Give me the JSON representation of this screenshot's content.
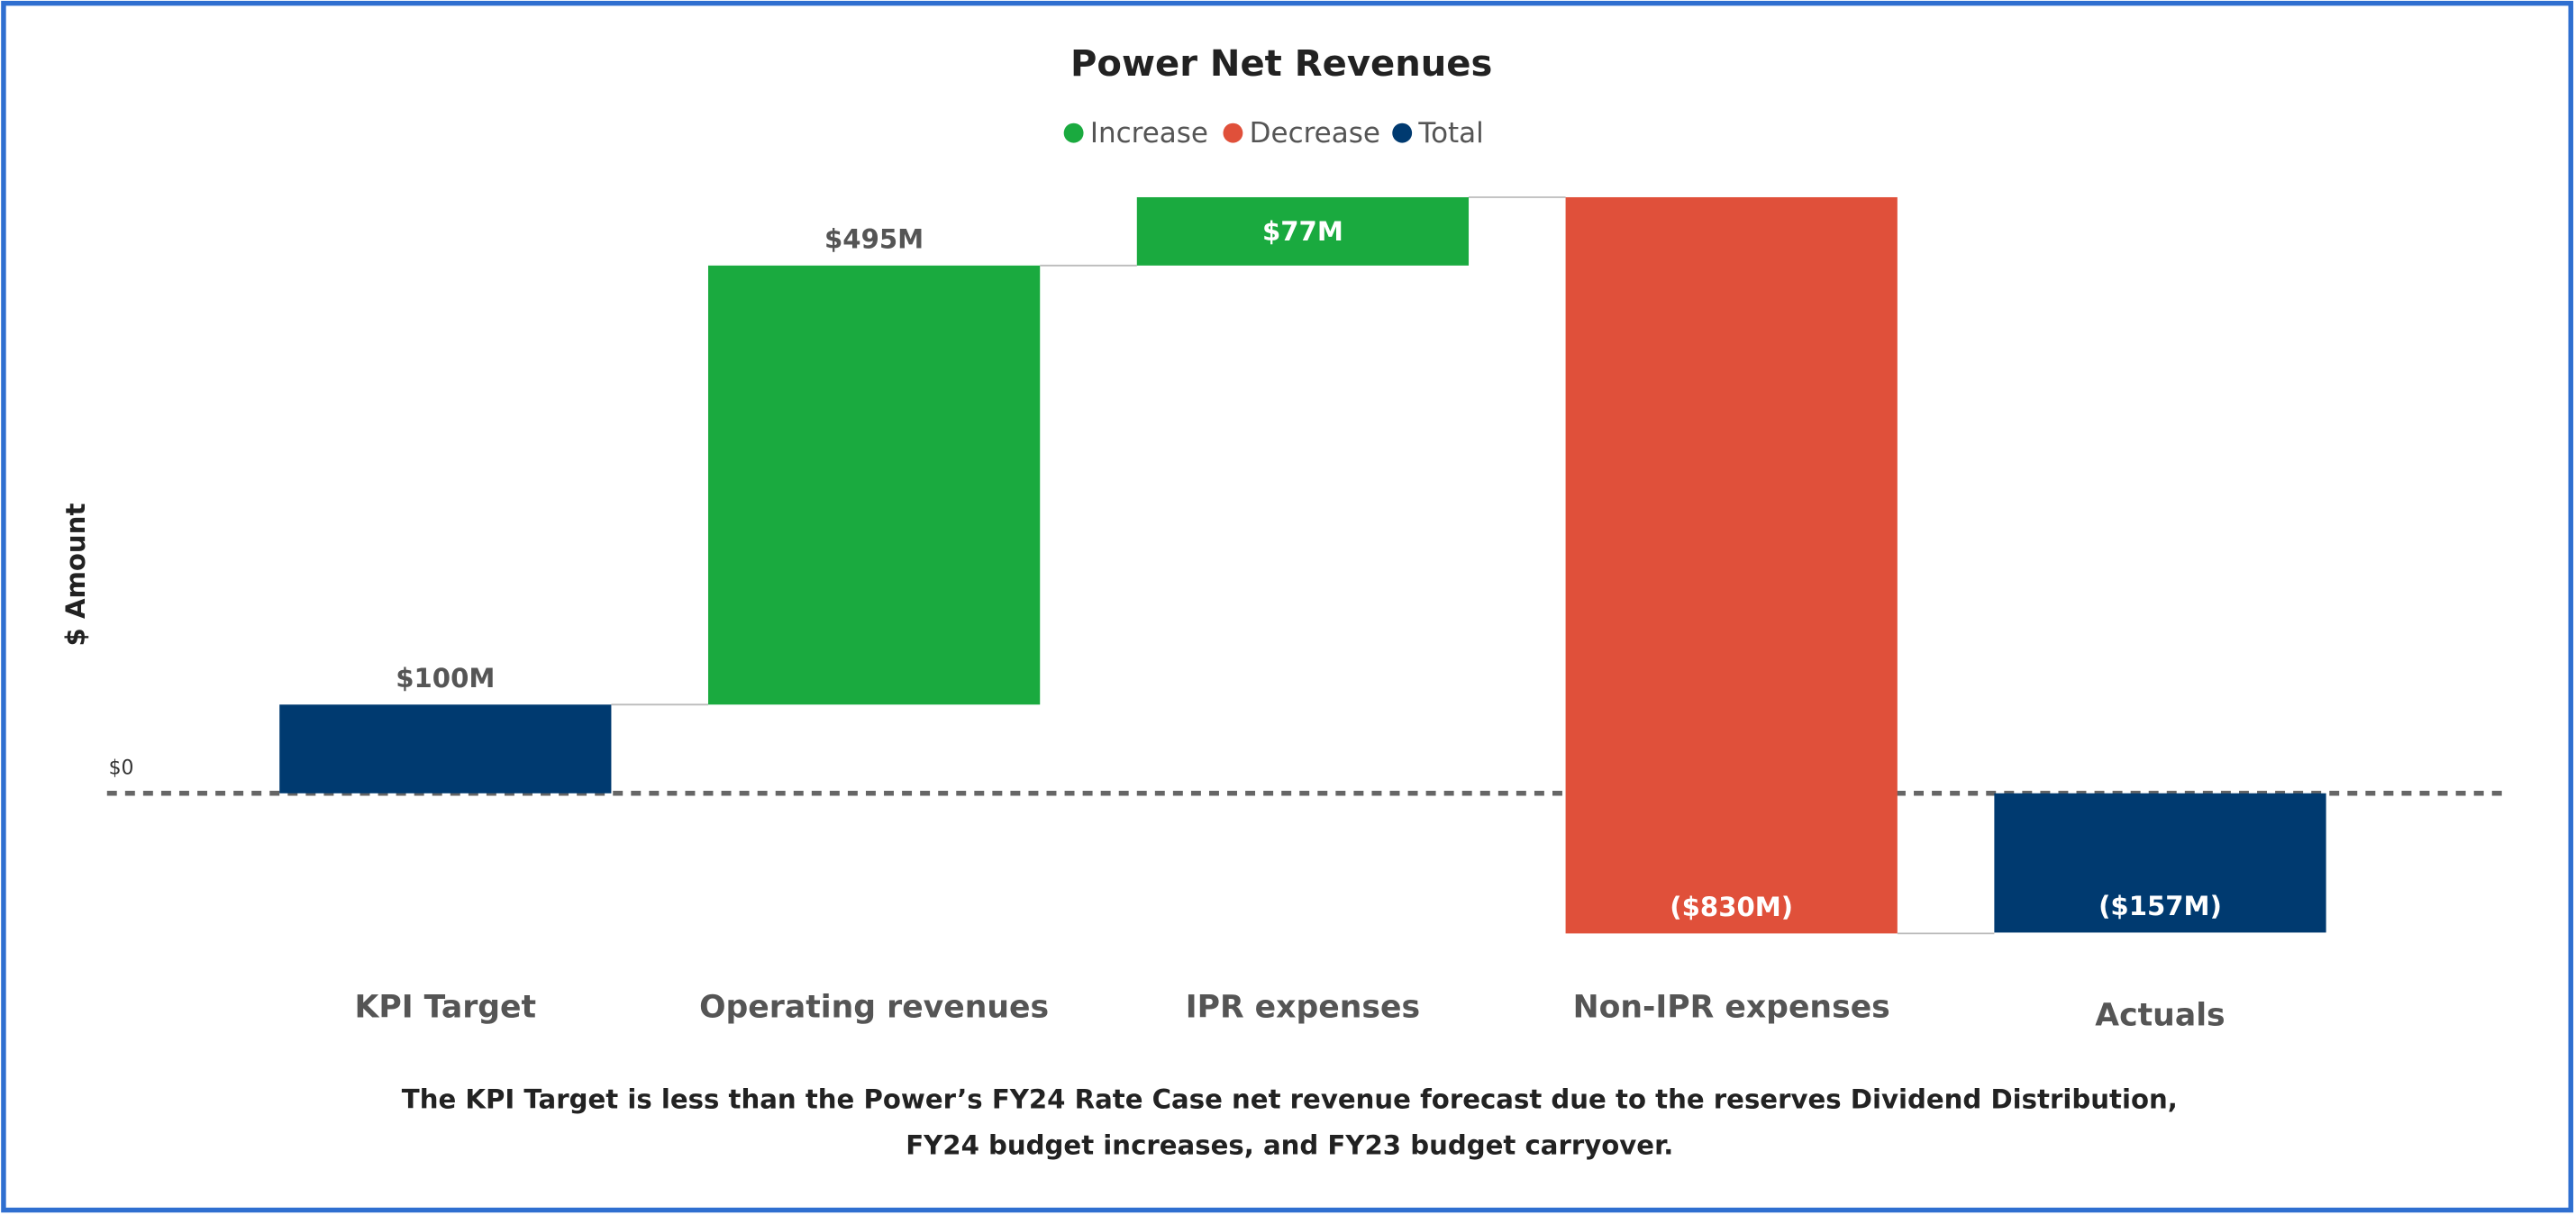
{
  "chart_data": {
    "type": "waterfall",
    "title": "Power Net Revenues",
    "legend": [
      {
        "name": "Increase",
        "color": "#1aaa3f"
      },
      {
        "name": "Decrease",
        "color": "#e0503a"
      },
      {
        "name": "Total",
        "color": "#003a70"
      }
    ],
    "categories": [
      "KPI Target",
      "Operating revenues",
      "IPR expenses",
      "Non-IPR expenses",
      "Actuals"
    ],
    "kinds": [
      "Total",
      "Increase",
      "Increase",
      "Decrease",
      "Total"
    ],
    "values": [
      100,
      495,
      77,
      -830,
      -157
    ],
    "value_labels": [
      "$100M",
      "$495M",
      "$77M",
      "($830M)",
      "($157M)"
    ],
    "ylabel": "$ Amount",
    "ylim": [
      -170,
      700
    ],
    "yticks": [
      {
        "value": 0,
        "label": "$0"
      }
    ],
    "note": "The KPI Target is less than the Power’s FY24 Rate Case net revenue forecast due to the reserves Dividend Distribution, FY24 budget increases, and FY23 budget carryover."
  }
}
